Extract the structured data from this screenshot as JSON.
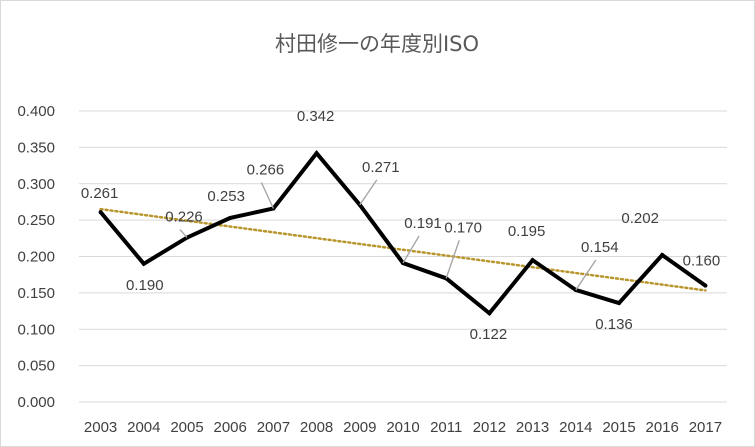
{
  "chart_data": {
    "type": "line",
    "title": "村田修一の年度別ISO",
    "xlabel": "",
    "ylabel": "",
    "ylim": [
      0,
      0.4
    ],
    "yticks": [
      "0.000",
      "0.050",
      "0.100",
      "0.150",
      "0.200",
      "0.250",
      "0.300",
      "0.350",
      "0.400"
    ],
    "categories": [
      "2003",
      "2004",
      "2005",
      "2006",
      "2007",
      "2008",
      "2009",
      "2010",
      "2011",
      "2012",
      "2013",
      "2014",
      "2015",
      "2016",
      "2017"
    ],
    "series": [
      {
        "values": [
          0.261,
          0.19,
          0.226,
          0.253,
          0.266,
          0.342,
          0.271,
          0.191,
          0.17,
          0.122,
          0.195,
          0.154,
          0.136,
          0.202,
          0.16
        ],
        "labels": [
          "0.261",
          "0.190",
          "0.226",
          "0.253",
          "0.266",
          "0.342",
          "0.271",
          "0.191",
          "0.170",
          "0.122",
          "0.195",
          "0.154",
          "0.136",
          "0.202",
          "0.160"
        ],
        "color": "#000000"
      }
    ],
    "trendline": {
      "type": "linear",
      "style": "dotted",
      "color": "#b8962e"
    },
    "grid": true,
    "legend": "none",
    "colors": {
      "gridline": "#d9d9d9",
      "text": "#595959",
      "leader": "#a6a6a6"
    }
  }
}
